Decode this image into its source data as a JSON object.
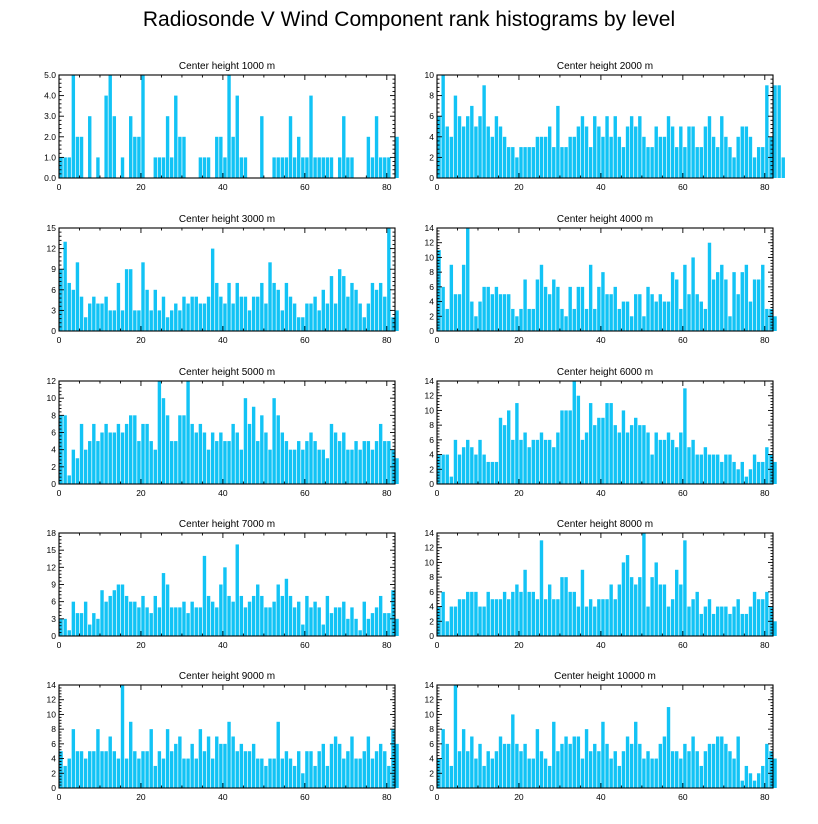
{
  "title": "Radiosonde V Wind Component rank histograms by level",
  "colors": {
    "bar": "#12c3f5",
    "axis": "#000000"
  },
  "chart_data": [
    {
      "type": "bar",
      "title": "Center height 1000 m",
      "xlim": [
        0,
        82
      ],
      "xticks": [
        0,
        20,
        40,
        60,
        80
      ],
      "ylim": [
        0,
        5
      ],
      "yticks": [
        0,
        1,
        2,
        3,
        4,
        5
      ],
      "ytick_labels": [
        "0.0",
        "1.0",
        "2.0",
        "3.0",
        "4.0",
        "5.0"
      ],
      "values": [
        1,
        1,
        1,
        5,
        2,
        2,
        0,
        3,
        0,
        1,
        0,
        4,
        5,
        3,
        0,
        1,
        0,
        3,
        2,
        2,
        5,
        0,
        0,
        1,
        1,
        1,
        3,
        1,
        4,
        2,
        2,
        0,
        0,
        0,
        1,
        1,
        1,
        0,
        2,
        2,
        1,
        5,
        2,
        4,
        1,
        1,
        0,
        0,
        0,
        3,
        0,
        0,
        1,
        1,
        1,
        1,
        3,
        1,
        2,
        1,
        1,
        4,
        1,
        1,
        1,
        1,
        1,
        0,
        1,
        3,
        1,
        1,
        0,
        0,
        0,
        2,
        1,
        3,
        1,
        1,
        1,
        0,
        2
      ]
    },
    {
      "type": "bar",
      "title": "Center height 2000 m",
      "xlim": [
        0,
        82
      ],
      "xticks": [
        0,
        20,
        40,
        60,
        80
      ],
      "ylim": [
        0,
        10
      ],
      "yticks": [
        0,
        2,
        4,
        6,
        8,
        10
      ],
      "ytick_labels": [
        "0",
        "2",
        "4",
        "6",
        "8",
        "10"
      ],
      "values": [
        6,
        10,
        5,
        4,
        8,
        6,
        5,
        6,
        7,
        5,
        6,
        9,
        5,
        4,
        6,
        5,
        4,
        3,
        3,
        2,
        3,
        3,
        3,
        3,
        4,
        4,
        4,
        5,
        3,
        7,
        3,
        3,
        4,
        4,
        5,
        6,
        5,
        3,
        6,
        5,
        4,
        6,
        4,
        6,
        4,
        3,
        5,
        6,
        5,
        6,
        4,
        3,
        3,
        5,
        4,
        4,
        6,
        5,
        3,
        5,
        3,
        5,
        5,
        3,
        3,
        5,
        6,
        4,
        3,
        6,
        4,
        3,
        2,
        4,
        5,
        5,
        4,
        2,
        3,
        3,
        9,
        4,
        9,
        9,
        2
      ]
    },
    {
      "type": "bar",
      "title": "Center height 3000 m",
      "xlim": [
        0,
        82
      ],
      "xticks": [
        0,
        20,
        40,
        60,
        80
      ],
      "ylim": [
        0,
        15
      ],
      "yticks": [
        0,
        3,
        6,
        9,
        12,
        15
      ],
      "ytick_labels": [
        "0",
        "3",
        "6",
        "9",
        "12",
        "15"
      ],
      "values": [
        9,
        13,
        7,
        6,
        10,
        5,
        2,
        4,
        5,
        4,
        4,
        5,
        3,
        3,
        7,
        3,
        9,
        9,
        3,
        3,
        10,
        6,
        3,
        6,
        3,
        5,
        2,
        3,
        4,
        3,
        5,
        4,
        5,
        5,
        4,
        4,
        5,
        12,
        7,
        5,
        4,
        7,
        4,
        7,
        5,
        5,
        3,
        5,
        5,
        7,
        4,
        10,
        7,
        6,
        3,
        7,
        5,
        4,
        2,
        2,
        4,
        4,
        5,
        3,
        6,
        4,
        8,
        4,
        9,
        8,
        5,
        7,
        6,
        4,
        2,
        4,
        7,
        6,
        7,
        5,
        15,
        2,
        3
      ]
    },
    {
      "type": "bar",
      "title": "Center height 4000 m",
      "xlim": [
        0,
        82
      ],
      "xticks": [
        0,
        20,
        40,
        60,
        80
      ],
      "ylim": [
        0,
        14
      ],
      "yticks": [
        0,
        2,
        4,
        6,
        8,
        10,
        12,
        14
      ],
      "ytick_labels": [
        "0",
        "2",
        "4",
        "6",
        "8",
        "10",
        "12",
        "14"
      ],
      "values": [
        11,
        6,
        3,
        9,
        5,
        5,
        9,
        14,
        4,
        2,
        4,
        6,
        6,
        5,
        6,
        5,
        5,
        5,
        3,
        2,
        3,
        7,
        3,
        3,
        7,
        9,
        6,
        5,
        7,
        6,
        3,
        2,
        6,
        3,
        6,
        6,
        3,
        9,
        3,
        6,
        8,
        5,
        5,
        6,
        3,
        4,
        4,
        2,
        5,
        5,
        2,
        6,
        5,
        4,
        5,
        4,
        4,
        8,
        7,
        3,
        9,
        5,
        10,
        5,
        4,
        3,
        12,
        7,
        8,
        9,
        7,
        2,
        8,
        5,
        8,
        9,
        4,
        7,
        7,
        9,
        3,
        3,
        2
      ]
    },
    {
      "type": "bar",
      "title": "Center height 5000 m",
      "xlim": [
        0,
        82
      ],
      "xticks": [
        0,
        20,
        40,
        60,
        80
      ],
      "ylim": [
        0,
        12
      ],
      "yticks": [
        0,
        2,
        4,
        6,
        8,
        10,
        12
      ],
      "ytick_labels": [
        "0",
        "2",
        "4",
        "6",
        "8",
        "10",
        "12"
      ],
      "values": [
        8,
        8,
        1,
        4,
        3,
        7,
        4,
        5,
        7,
        5,
        6,
        7,
        6,
        6,
        7,
        6,
        7,
        8,
        8,
        5,
        7,
        7,
        5,
        4,
        12,
        10,
        8,
        5,
        5,
        8,
        8,
        12,
        7,
        6,
        7,
        6,
        4,
        6,
        5,
        6,
        5,
        5,
        7,
        6,
        4,
        10,
        7,
        9,
        5,
        8,
        6,
        4,
        10,
        8,
        6,
        5,
        4,
        4,
        5,
        4,
        5,
        6,
        5,
        4,
        4,
        3,
        7,
        6,
        5,
        6,
        4,
        4,
        5,
        4,
        5,
        5,
        4,
        5,
        7,
        5,
        5,
        4,
        3
      ]
    },
    {
      "type": "bar",
      "title": "Center height 6000 m",
      "xlim": [
        0,
        82
      ],
      "xticks": [
        0,
        20,
        40,
        60,
        80
      ],
      "ylim": [
        0,
        14
      ],
      "yticks": [
        0,
        2,
        4,
        6,
        8,
        10,
        12,
        14
      ],
      "ytick_labels": [
        "0",
        "2",
        "4",
        "6",
        "8",
        "10",
        "12",
        "14"
      ],
      "values": [
        4,
        4,
        4,
        1,
        6,
        4,
        5,
        6,
        5,
        4,
        6,
        4,
        3,
        3,
        3,
        9,
        8,
        10,
        6,
        11,
        6,
        7,
        5,
        6,
        6,
        7,
        6,
        6,
        5,
        7,
        10,
        10,
        10,
        14,
        12,
        6,
        7,
        11,
        8,
        9,
        9,
        11,
        11,
        8,
        7,
        10,
        7,
        8,
        9,
        8,
        8,
        7,
        4,
        7,
        6,
        6,
        7,
        6,
        5,
        7,
        13,
        5,
        6,
        4,
        4,
        5,
        4,
        4,
        4,
        3,
        4,
        4,
        3,
        2,
        3,
        1,
        2,
        4,
        3,
        3,
        5,
        4,
        3
      ]
    },
    {
      "type": "bar",
      "title": "Center height 7000 m",
      "xlim": [
        0,
        82
      ],
      "xticks": [
        0,
        20,
        40,
        60,
        80
      ],
      "ylim": [
        0,
        18
      ],
      "yticks": [
        0,
        3,
        6,
        9,
        12,
        15,
        18
      ],
      "ytick_labels": [
        "0",
        "3",
        "6",
        "9",
        "12",
        "15",
        "18"
      ],
      "values": [
        3,
        3,
        1,
        6,
        4,
        4,
        6,
        2,
        4,
        3,
        8,
        6,
        7,
        8,
        9,
        9,
        7,
        6,
        6,
        5,
        7,
        5,
        4,
        7,
        5,
        11,
        9,
        5,
        5,
        5,
        6,
        4,
        6,
        5,
        5,
        14,
        7,
        6,
        5,
        9,
        12,
        7,
        6,
        16,
        7,
        5,
        6,
        7,
        9,
        7,
        5,
        5,
        6,
        9,
        7,
        10,
        7,
        5,
        6,
        2,
        7,
        5,
        6,
        5,
        2,
        7,
        4,
        5,
        5,
        6,
        3,
        5,
        3,
        1,
        6,
        3,
        4,
        5,
        7,
        4,
        4,
        8,
        3
      ]
    },
    {
      "type": "bar",
      "title": "Center height 8000 m",
      "xlim": [
        0,
        82
      ],
      "xticks": [
        0,
        20,
        40,
        60,
        80
      ],
      "ylim": [
        0,
        14
      ],
      "yticks": [
        0,
        2,
        4,
        6,
        8,
        10,
        12,
        14
      ],
      "ytick_labels": [
        "0",
        "2",
        "4",
        "6",
        "8",
        "10",
        "12",
        "14"
      ],
      "values": [
        4,
        6,
        2,
        4,
        4,
        5,
        5,
        6,
        6,
        6,
        4,
        4,
        6,
        5,
        5,
        5,
        6,
        5,
        6,
        7,
        6,
        9,
        6,
        6,
        5,
        13,
        5,
        7,
        5,
        5,
        8,
        8,
        6,
        6,
        4,
        9,
        4,
        5,
        4,
        5,
        5,
        5,
        7,
        5,
        7,
        10,
        11,
        8,
        7,
        8,
        14,
        4,
        8,
        10,
        7,
        7,
        4,
        5,
        9,
        7,
        13,
        4,
        5,
        6,
        3,
        4,
        5,
        3,
        4,
        4,
        4,
        3,
        4,
        5,
        3,
        3,
        4,
        6,
        5,
        5,
        6,
        4,
        2
      ]
    },
    {
      "type": "bar",
      "title": "Center height 9000 m",
      "xlim": [
        0,
        82
      ],
      "xticks": [
        0,
        20,
        40,
        60,
        80
      ],
      "ylim": [
        0,
        14
      ],
      "yticks": [
        0,
        2,
        4,
        6,
        8,
        10,
        12,
        14
      ],
      "ytick_labels": [
        "0",
        "2",
        "4",
        "6",
        "8",
        "10",
        "12",
        "14"
      ],
      "values": [
        5,
        3,
        4,
        8,
        5,
        5,
        4,
        5,
        5,
        8,
        5,
        5,
        7,
        5,
        4,
        14,
        4,
        9,
        5,
        4,
        5,
        5,
        8,
        3,
        5,
        4,
        8,
        5,
        6,
        7,
        4,
        4,
        6,
        4,
        8,
        5,
        7,
        4,
        7,
        6,
        6,
        9,
        7,
        5,
        6,
        5,
        5,
        6,
        4,
        4,
        3,
        4,
        4,
        9,
        4,
        5,
        4,
        3,
        5,
        2,
        5,
        5,
        3,
        5,
        6,
        3,
        6,
        7,
        6,
        4,
        5,
        7,
        4,
        4,
        5,
        7,
        4,
        5,
        6,
        5,
        3,
        8,
        6
      ]
    },
    {
      "type": "bar",
      "title": "Center height 10000 m",
      "xlim": [
        0,
        82
      ],
      "xticks": [
        0,
        20,
        40,
        60,
        80
      ],
      "ylim": [
        0,
        14
      ],
      "yticks": [
        0,
        2,
        4,
        6,
        8,
        10,
        12,
        14
      ],
      "ytick_labels": [
        "0",
        "2",
        "4",
        "6",
        "8",
        "10",
        "12",
        "14"
      ],
      "values": [
        4,
        8,
        6,
        3,
        14,
        5,
        8,
        5,
        7,
        4,
        6,
        3,
        5,
        4,
        5,
        7,
        6,
        6,
        10,
        6,
        5,
        6,
        4,
        4,
        8,
        5,
        4,
        3,
        9,
        5,
        6,
        7,
        6,
        7,
        7,
        4,
        8,
        5,
        6,
        5,
        9,
        6,
        4,
        5,
        3,
        5,
        7,
        6,
        9,
        6,
        4,
        5,
        4,
        4,
        6,
        7,
        11,
        5,
        5,
        4,
        6,
        5,
        7,
        5,
        3,
        5,
        6,
        6,
        7,
        7,
        6,
        5,
        4,
        7,
        1,
        3,
        2,
        1,
        2,
        3,
        6,
        5,
        4
      ]
    }
  ]
}
